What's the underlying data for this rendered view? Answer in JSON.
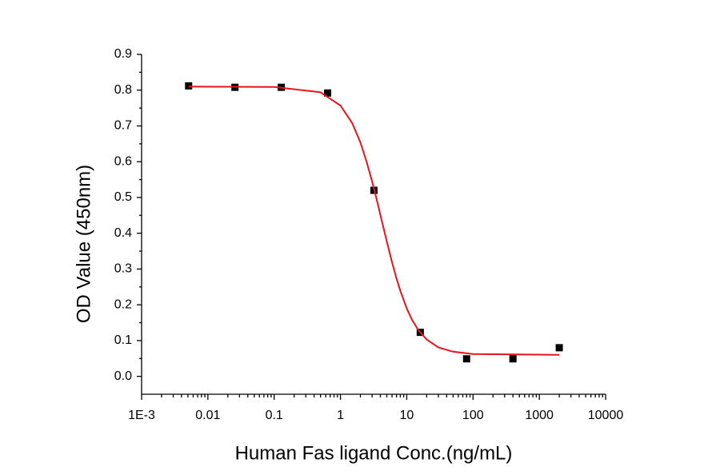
{
  "chart_data": {
    "type": "scatter",
    "x_label": "Human Fas ligand Conc.(ng/mL)",
    "y_label": "OD Value (450nm)",
    "x_scale": "log",
    "xlim": [
      0.001,
      10000
    ],
    "xticks": [
      {
        "value": 0.001,
        "label": "1E-3"
      },
      0.01,
      0.1,
      1,
      10,
      100,
      1000,
      10000
    ],
    "ylim": [
      -0.05,
      0.9
    ],
    "yticks": [
      {
        "value": 0,
        "label": "0.0"
      },
      0.1,
      0.2,
      0.3,
      0.4,
      0.5,
      0.6,
      0.7,
      0.8,
      0.9
    ],
    "series": [
      {
        "kind": "points",
        "color": "#000000",
        "x": [
          0.00512,
          0.0256,
          0.128,
          0.64,
          3.2,
          16,
          80,
          400,
          2000
        ],
        "values": [
          0.812,
          0.808,
          0.808,
          0.792,
          0.52,
          0.123,
          0.049,
          0.049,
          0.08
        ]
      },
      {
        "kind": "fit",
        "color": "#e8141b",
        "x": [
          0.00512,
          0.1,
          0.5,
          1,
          1.5,
          2,
          2.5,
          3,
          3.5,
          4,
          5,
          6,
          7,
          8,
          10,
          12,
          15,
          20,
          30,
          50,
          100,
          2000
        ],
        "values": [
          0.81,
          0.809,
          0.794,
          0.757,
          0.708,
          0.654,
          0.598,
          0.545,
          0.496,
          0.451,
          0.377,
          0.319,
          0.274,
          0.239,
          0.19,
          0.158,
          0.129,
          0.103,
          0.081,
          0.069,
          0.0625,
          0.06
        ]
      }
    ]
  }
}
